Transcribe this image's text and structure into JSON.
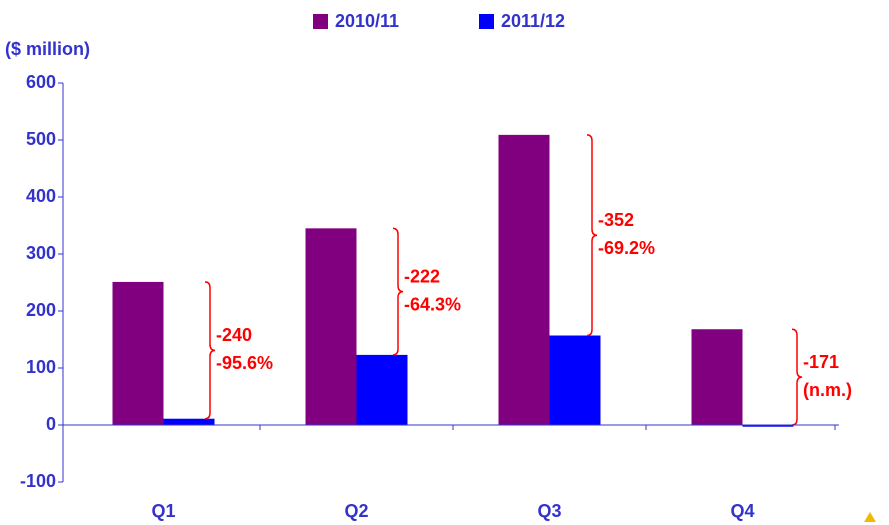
{
  "chart_data": {
    "type": "bar",
    "unit_label": "($ million)",
    "categories": [
      "Q1",
      "Q2",
      "Q3",
      "Q4"
    ],
    "series": [
      {
        "name": "2010/11",
        "color": "#800080",
        "values": [
          251,
          345,
          509,
          168
        ]
      },
      {
        "name": "2011/12",
        "color": "#0000ff",
        "values": [
          11,
          123,
          157,
          -3
        ]
      }
    ],
    "annotations": [
      {
        "lines": [
          "-240",
          "-95.6%"
        ]
      },
      {
        "lines": [
          "-222",
          "-64.3%"
        ]
      },
      {
        "lines": [
          "-352",
          "-69.2%"
        ]
      },
      {
        "lines": [
          "-171",
          "(n.m.)"
        ]
      }
    ],
    "annotation_color": "#ff0000",
    "ylim": [
      -100,
      600
    ],
    "yticks": [
      -100,
      0,
      100,
      200,
      300,
      400,
      500,
      600
    ]
  }
}
